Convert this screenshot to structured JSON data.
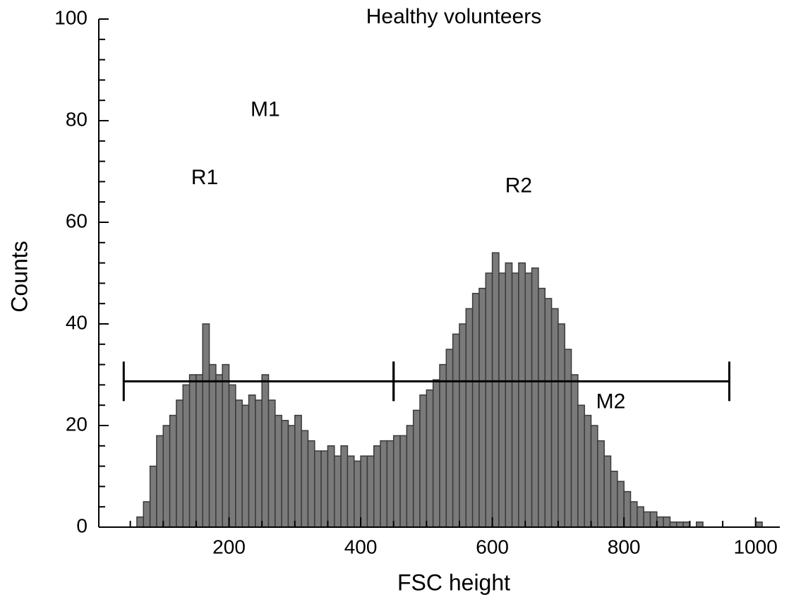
{
  "chart_data": {
    "type": "histogram",
    "title": "Healthy volunteers",
    "xlabel": "FSC height",
    "ylabel": "Counts",
    "color": "#7a7a7a",
    "edge_color": "#3a3a3a",
    "bins": [
      0,
      10,
      20,
      30,
      40,
      50,
      60,
      70,
      80,
      90,
      100,
      110,
      120,
      130,
      140,
      150,
      160,
      170,
      180,
      190,
      200,
      210,
      220,
      230,
      240,
      250,
      260,
      270,
      280,
      290,
      300,
      310,
      320,
      330,
      340,
      350,
      360,
      370,
      380,
      390,
      400,
      410,
      420,
      430,
      440,
      450,
      460,
      470,
      480,
      490,
      500,
      510,
      520,
      530,
      540,
      550,
      560,
      570,
      580,
      590,
      600,
      610,
      620,
      630,
      640,
      650,
      660,
      670,
      680,
      690,
      700,
      710,
      720,
      730,
      740,
      750,
      760,
      770,
      780,
      790,
      800,
      810,
      820,
      830,
      840,
      850,
      860,
      870,
      880,
      890,
      900,
      910,
      920,
      930,
      940,
      950,
      960,
      970,
      980,
      990,
      1000,
      1010,
      1020,
      1030,
      1040
    ],
    "values": [
      0,
      0,
      0,
      0,
      0,
      0,
      2,
      5,
      12,
      18,
      20,
      22,
      25,
      28,
      30,
      30,
      40,
      32,
      30,
      32,
      28,
      25,
      24,
      26,
      25,
      30,
      25,
      22,
      21,
      20,
      22,
      19,
      17,
      15,
      15,
      16,
      14,
      16,
      14,
      13,
      14,
      14,
      16,
      17,
      17,
      18,
      18,
      20,
      23,
      26,
      27,
      29,
      32,
      35,
      38,
      40,
      43,
      46,
      47,
      50,
      54,
      50,
      52,
      50,
      52,
      50,
      51,
      47,
      45,
      43,
      40,
      35,
      30,
      24,
      22,
      20,
      17,
      14,
      11,
      9,
      7,
      5,
      4,
      3,
      3,
      2,
      2,
      1,
      1,
      1,
      0,
      1,
      0,
      0,
      0,
      0,
      0,
      0,
      0,
      0,
      1,
      0,
      0,
      0
    ],
    "xlim": [
      0,
      1040
    ],
    "ylim": [
      0,
      100
    ],
    "xticks": [
      200,
      400,
      600,
      800,
      1000
    ],
    "yticks": [
      0,
      20,
      40,
      60,
      80,
      100
    ],
    "xminorticks": [
      50,
      100,
      150,
      250,
      300,
      350,
      450,
      500,
      550,
      650,
      700,
      750,
      850,
      900,
      950
    ],
    "yminorticks": [
      4,
      8,
      12,
      16,
      24,
      28,
      32,
      36,
      44,
      48,
      52,
      56,
      64,
      68,
      72,
      76,
      84,
      88,
      92,
      96
    ],
    "markers": [
      {
        "label": "M1",
        "start": 40,
        "end": 450,
        "level": 28.7,
        "label_x": 255,
        "label_y": 82
      },
      {
        "label": "M2",
        "start": 450,
        "end": 960,
        "level": 28.7,
        "label_x": 780,
        "label_y": 24.5
      }
    ],
    "annotations": [
      {
        "text": "R1",
        "x": 163,
        "y": 68.6
      },
      {
        "text": "R2",
        "x": 640,
        "y": 67
      }
    ]
  }
}
